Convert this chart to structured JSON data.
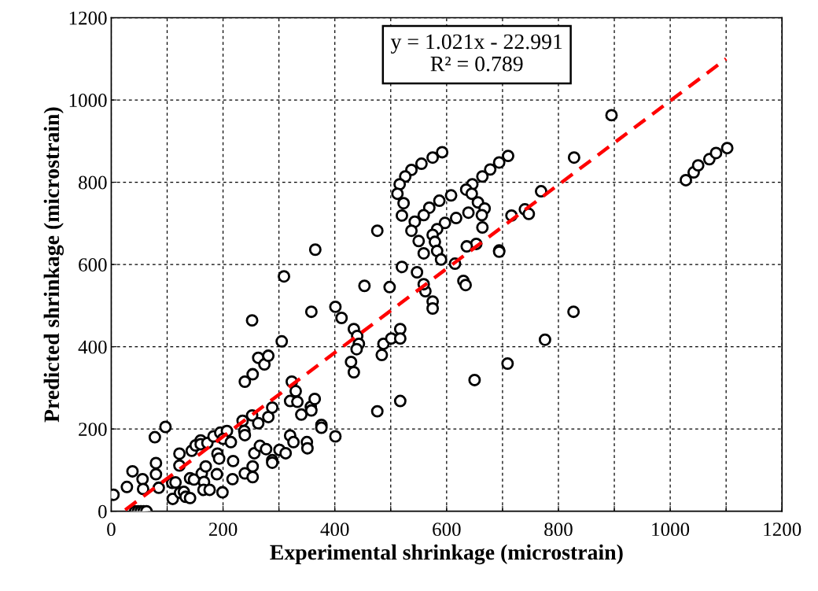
{
  "chart_data": {
    "type": "scatter",
    "xlabel": "Experimental shrinkage (microstrain)",
    "ylabel": "Predicted shrinkage (microstrain)",
    "xlim": [
      0,
      1200
    ],
    "ylim": [
      0,
      1200
    ],
    "xticks": [
      0,
      {
        "value": 100,
        "label": null
      },
      200,
      {
        "value": 300,
        "label": null
      },
      400,
      {
        "value": 500,
        "label": null
      },
      600,
      {
        "value": 700,
        "label": null
      },
      800,
      {
        "value": 900,
        "label": null
      },
      1000,
      {
        "value": 1100,
        "label": null
      },
      1200
    ],
    "yticks": [
      0,
      200,
      400,
      600,
      800,
      1000,
      1200
    ],
    "grid": true,
    "marker": "circle",
    "annotations": [
      "y = 1.021x - 22.991\nR² = 0.789"
    ],
    "series": [
      {
        "color": "#000000",
        "x": [
          4,
          28,
          38,
          56,
          57,
          43,
          48,
          53,
          58,
          63,
          78,
          97,
          80,
          80,
          85,
          109,
          115,
          110,
          122,
          122,
          123,
          130,
          133,
          141,
          141,
          148,
          144,
          151,
          160,
          160,
          172,
          183,
          195,
          207,
          200,
          162,
          166,
          165,
          176,
          169,
          190,
          193,
          189,
          199,
          217,
          218,
          214,
          235,
          238,
          239,
          239,
          252,
          253,
          253,
          256,
          263,
          266,
          277,
          281,
          288,
          288,
          288,
          301,
          312,
          253,
          239,
          263,
          274,
          281,
          305,
          323,
          330,
          320,
          333,
          340,
          357,
          358,
          364,
          376,
          376,
          401,
          320,
          326,
          350,
          351,
          252,
          309,
          365,
          358,
          401,
          412,
          453,
          476,
          498,
          520,
          434,
          440,
          443,
          439,
          429,
          434,
          487,
          484,
          501,
          517,
          517,
          517,
          476,
          592,
          575,
          555,
          537,
          526,
          516,
          512,
          523,
          520,
          710,
          694,
          678,
          664,
          646,
          635,
          645,
          656,
          668,
          663,
          639,
          664,
          653,
          636,
          694,
          694,
          608,
          587,
          569,
          559,
          543,
          537,
          550,
          559,
          617,
          597,
          583,
          575,
          579,
          583,
          590,
          615,
          630,
          634,
          575,
          575,
          562,
          559,
          547,
          716,
          740,
          747,
          769,
          828,
          827,
          776,
          709,
          650,
          895,
          1028,
          1042,
          1050,
          1070,
          1082,
          1102
        ],
        "values": [
          40,
          59,
          97,
          78,
          54,
          0,
          0,
          0,
          0,
          0,
          180,
          205,
          117,
          90,
          57,
          69,
          70,
          30,
          140,
          111,
          45,
          47,
          35,
          32,
          80,
          77,
          147,
          160,
          172,
          163,
          166,
          182,
          191,
          195,
          176,
          92,
          71,
          52,
          52,
          109,
          140,
          128,
          90,
          46,
          78,
          122,
          168,
          220,
          195,
          185,
          92,
          233,
          109,
          83,
          141,
          214,
          159,
          151,
          229,
          252,
          124,
          118,
          149,
          141,
          333,
          315,
          373,
          357,
          378,
          413,
          315,
          292,
          268,
          266,
          235,
          254,
          245,
          273,
          210,
          203,
          182,
          184,
          168,
          168,
          153,
          464,
          571,
          636,
          485,
          497,
          470,
          548,
          682,
          545,
          594,
          443,
          426,
          407,
          394,
          363,
          338,
          407,
          380,
          420,
          443,
          420,
          268,
          243,
          873,
          860,
          845,
          830,
          814,
          795,
          772,
          749,
          719,
          864,
          848,
          831,
          814,
          795,
          782,
          772,
          751,
          736,
          720,
          726,
          690,
          650,
          644,
          634,
          631,
          768,
          755,
          738,
          720,
          704,
          682,
          657,
          627,
          713,
          701,
          686,
          672,
          655,
          633,
          612,
          602,
          560,
          550,
          510,
          493,
          535,
          552,
          581,
          719,
          734,
          723,
          778,
          860,
          485,
          417,
          359,
          319,
          963,
          805,
          824,
          841,
          856,
          871,
          883
        ]
      },
      {
        "type": "line",
        "color": "#ff0000",
        "line_style": "dashed",
        "marker": "none",
        "x": [
          25,
          1100
        ],
        "values": [
          3,
          1100
        ]
      }
    ]
  }
}
